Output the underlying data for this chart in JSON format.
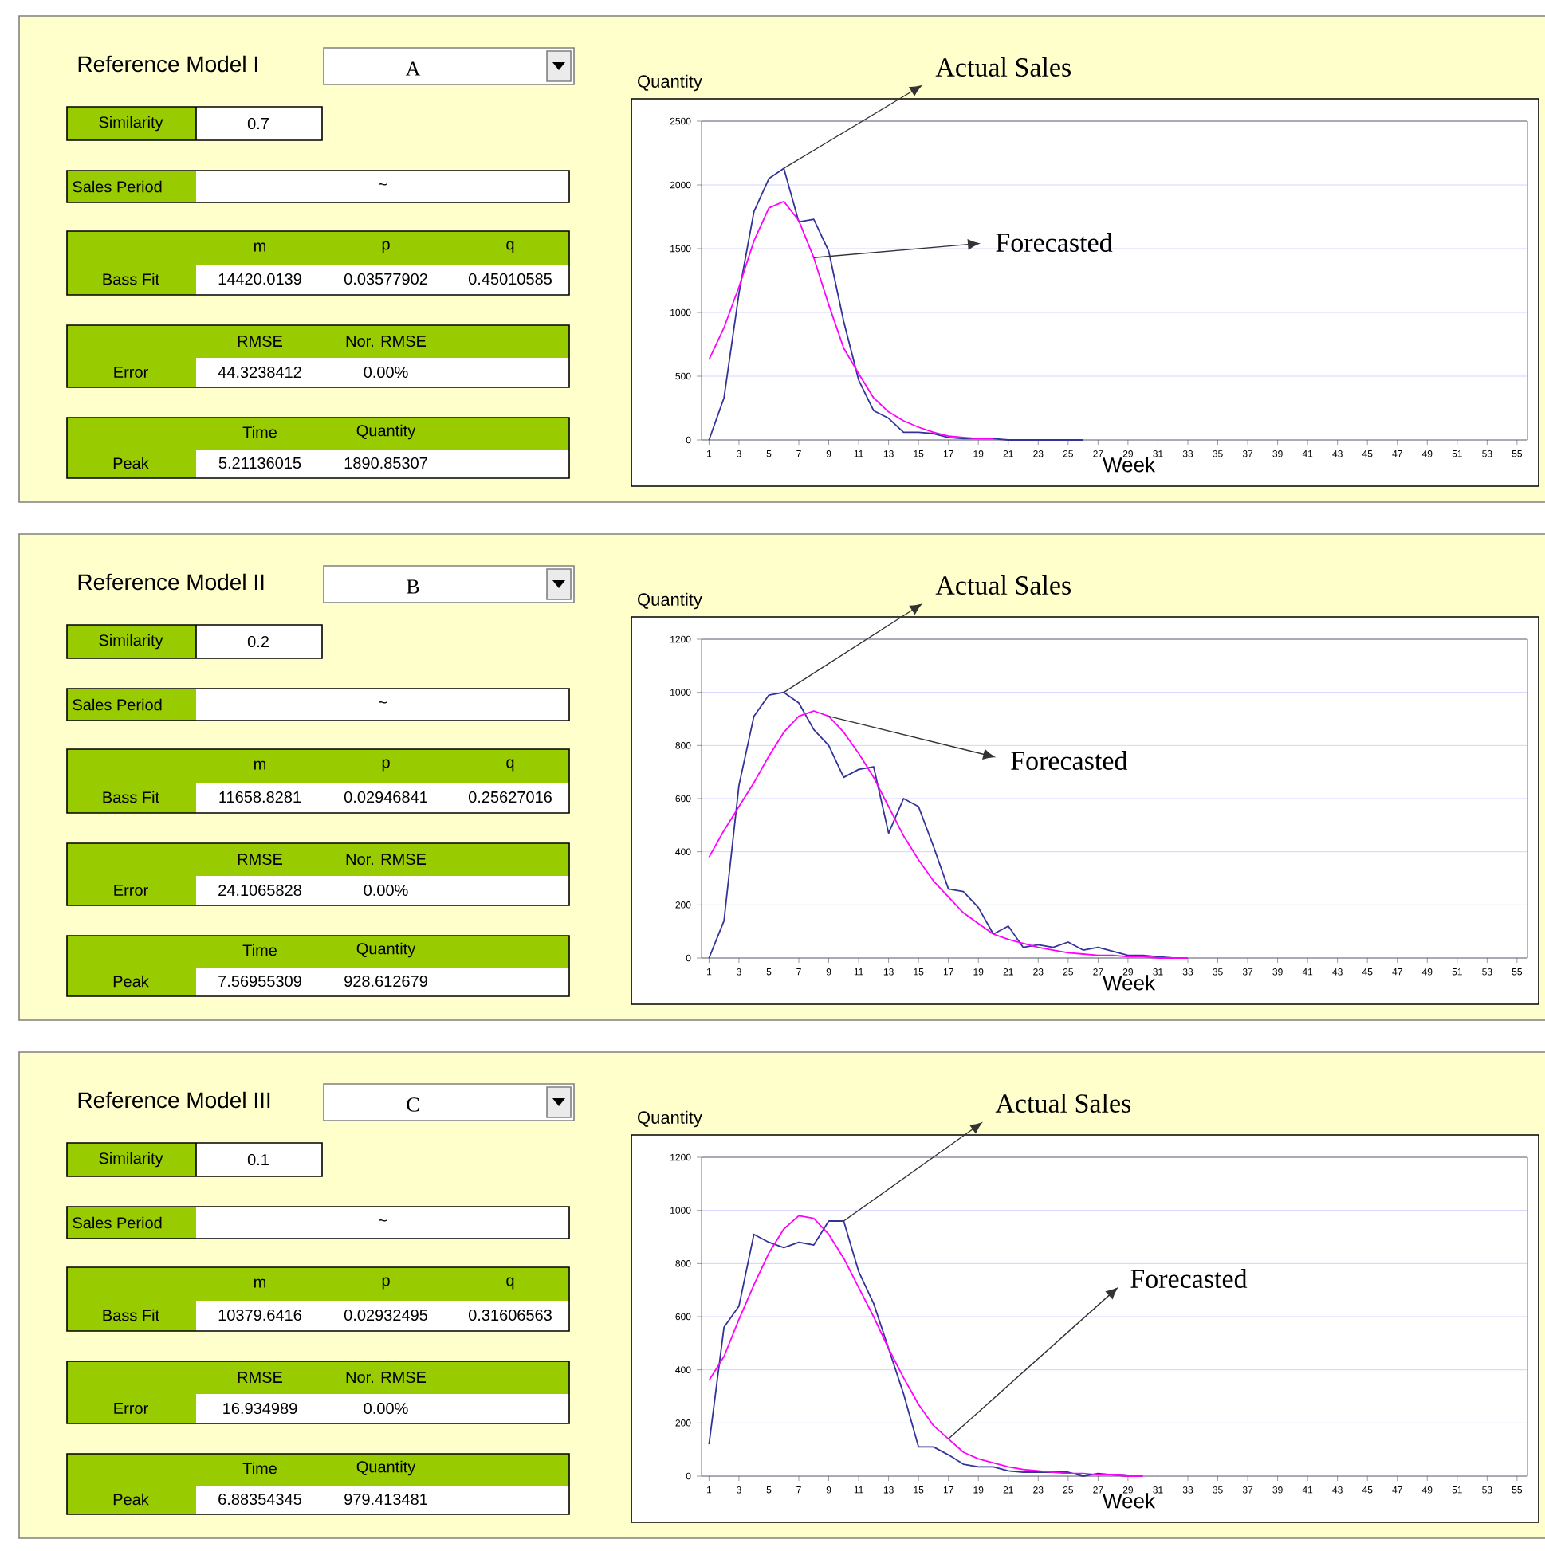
{
  "chart_data": [
    {
      "type": "other",
      "title": "Reference Model I",
      "annotations": [
        "A",
        "Similarity",
        "0.7",
        "Sales Period",
        "~",
        "m",
        "p",
        "q",
        "Bass Fit",
        "14420.0139",
        "0.03577902",
        "0.45010585",
        "RMSE",
        "Nor. RMSE",
        "Error",
        "44.3238412",
        "0.00%",
        "Time",
        "Quantity",
        "Peak",
        "5.21136015",
        "1890.85307"
      ]
    },
    {
      "type": "line",
      "xlabel": "Week",
      "ylabel": "Quantity",
      "xlim": [
        0.5,
        55.7
      ],
      "ylim": [
        0,
        2500
      ],
      "xticks": [
        1,
        3,
        5,
        7,
        9,
        11,
        13,
        15,
        17,
        19,
        21,
        23,
        25,
        27,
        29,
        31,
        33,
        35,
        37,
        39,
        41,
        43,
        45,
        47,
        49,
        51,
        53,
        55
      ],
      "yticks": [
        0,
        500,
        1000,
        1500,
        2000,
        2500
      ],
      "grid": "y",
      "marker": "none",
      "annotations": [
        {
          "text": "Actual Sales",
          "x": 6,
          "y": 2130
        },
        {
          "text": "Forecasted",
          "x": 8,
          "y": 1430
        }
      ],
      "series": [
        {
          "color": "#333399",
          "x": [
            1,
            2,
            3,
            4,
            5,
            6,
            7,
            8,
            9,
            10,
            11,
            12,
            13,
            14,
            15,
            16,
            17,
            18,
            19,
            20,
            21,
            22,
            23,
            24,
            25,
            26
          ],
          "values": [
            0,
            330,
            1150,
            1790,
            2050,
            2130,
            1710,
            1730,
            1480,
            930,
            470,
            230,
            170,
            60,
            60,
            50,
            20,
            10,
            10,
            10,
            0,
            0,
            0,
            0,
            0,
            0
          ]
        },
        {
          "color": "#ff00ff",
          "x": [
            1,
            2,
            3,
            4,
            5,
            6,
            7,
            8,
            9,
            10,
            11,
            12,
            13,
            14,
            15,
            16,
            17,
            18,
            19,
            20
          ],
          "values": [
            630,
            880,
            1200,
            1560,
            1820,
            1870,
            1720,
            1430,
            1060,
            720,
            520,
            330,
            220,
            150,
            100,
            60,
            30,
            20,
            10,
            10
          ]
        }
      ]
    },
    {
      "type": "other",
      "title": "Reference Model II",
      "annotations": [
        "B",
        "Similarity",
        "0.2",
        "Sales Period",
        "~",
        "m",
        "p",
        "q",
        "Bass Fit",
        "11658.8281",
        "0.02946841",
        "0.25627016",
        "RMSE",
        "Nor. RMSE",
        "Error",
        "24.1065828",
        "0.00%",
        "Time",
        "Quantity",
        "Peak",
        "7.56955309",
        "928.612679"
      ]
    },
    {
      "type": "line",
      "xlabel": "Week",
      "ylabel": "Quantity",
      "xlim": [
        0.5,
        55.7
      ],
      "ylim": [
        0,
        1200
      ],
      "xticks": [
        1,
        3,
        5,
        7,
        9,
        11,
        13,
        15,
        17,
        19,
        21,
        23,
        25,
        27,
        29,
        31,
        33,
        35,
        37,
        39,
        41,
        43,
        45,
        47,
        49,
        51,
        53,
        55
      ],
      "yticks": [
        0,
        200,
        400,
        600,
        800,
        1000,
        1200
      ],
      "grid": "y",
      "marker": "none",
      "annotations": [
        {
          "text": "Actual Sales",
          "x": 6,
          "y": 1000
        },
        {
          "text": "Forecasted",
          "x": 9,
          "y": 910
        }
      ],
      "series": [
        {
          "color": "#333399",
          "x": [
            1,
            2,
            3,
            4,
            5,
            6,
            7,
            8,
            9,
            10,
            11,
            12,
            13,
            14,
            15,
            16,
            17,
            18,
            19,
            20,
            21,
            22,
            23,
            24,
            25,
            26,
            27,
            28,
            29,
            30,
            31,
            32
          ],
          "values": [
            0,
            140,
            650,
            910,
            990,
            1000,
            960,
            860,
            800,
            680,
            710,
            720,
            470,
            600,
            570,
            420,
            260,
            250,
            190,
            90,
            120,
            40,
            50,
            40,
            60,
            30,
            40,
            25,
            10,
            10,
            5,
            0
          ]
        },
        {
          "color": "#ff00ff",
          "x": [
            1,
            2,
            3,
            4,
            5,
            6,
            7,
            8,
            9,
            10,
            11,
            12,
            13,
            14,
            15,
            16,
            17,
            18,
            19,
            20,
            21,
            22,
            23,
            24,
            25,
            26,
            27,
            28,
            29,
            30,
            31,
            32,
            33
          ],
          "values": [
            380,
            480,
            570,
            660,
            760,
            850,
            910,
            930,
            910,
            850,
            770,
            680,
            570,
            460,
            370,
            290,
            230,
            170,
            130,
            90,
            70,
            55,
            40,
            30,
            20,
            15,
            10,
            10,
            5,
            5,
            0,
            0,
            0
          ]
        }
      ]
    },
    {
      "type": "other",
      "title": "Reference Model III",
      "annotations": [
        "C",
        "Similarity",
        "0.1",
        "Sales Period",
        "~",
        "m",
        "p",
        "q",
        "Bass Fit",
        "10379.6416",
        "0.02932495",
        "0.31606563",
        "RMSE",
        "Nor. RMSE",
        "Error",
        "16.934989",
        "0.00%",
        "Time",
        "Quantity",
        "Peak",
        "6.88354345",
        "979.413481"
      ]
    },
    {
      "type": "line",
      "xlabel": "Week",
      "ylabel": "Quantity",
      "xlim": [
        0.5,
        55.7
      ],
      "ylim": [
        0,
        1200
      ],
      "xticks": [
        1,
        3,
        5,
        7,
        9,
        11,
        13,
        15,
        17,
        19,
        21,
        23,
        25,
        27,
        29,
        31,
        33,
        35,
        37,
        39,
        41,
        43,
        45,
        47,
        49,
        51,
        53,
        55
      ],
      "yticks": [
        0,
        200,
        400,
        600,
        800,
        1000,
        1200
      ],
      "grid": "y",
      "marker": "none",
      "annotations": [
        {
          "text": "Actual Sales",
          "x": 10,
          "y": 960
        },
        {
          "text": "Forecasted",
          "x": 17,
          "y": 140
        }
      ],
      "series": [
        {
          "color": "#333399",
          "x": [
            1,
            2,
            3,
            4,
            5,
            6,
            7,
            8,
            9,
            10,
            11,
            12,
            13,
            14,
            15,
            16,
            17,
            18,
            19,
            20,
            21,
            22,
            23,
            24,
            25,
            26,
            27,
            28,
            29
          ],
          "values": [
            120,
            560,
            640,
            910,
            880,
            860,
            880,
            870,
            960,
            960,
            770,
            650,
            480,
            310,
            110,
            110,
            80,
            45,
            35,
            35,
            20,
            15,
            15,
            15,
            15,
            0,
            10,
            5,
            0
          ]
        },
        {
          "color": "#ff00ff",
          "x": [
            1,
            2,
            3,
            4,
            5,
            6,
            7,
            8,
            9,
            10,
            11,
            12,
            13,
            14,
            15,
            16,
            17,
            18,
            19,
            20,
            21,
            22,
            23,
            24,
            25,
            26,
            27,
            28,
            29,
            30
          ],
          "values": [
            360,
            450,
            590,
            720,
            840,
            930,
            980,
            970,
            910,
            820,
            710,
            600,
            480,
            370,
            270,
            190,
            140,
            90,
            65,
            50,
            35,
            25,
            20,
            15,
            10,
            10,
            5,
            5,
            0,
            0
          ]
        }
      ]
    }
  ]
}
